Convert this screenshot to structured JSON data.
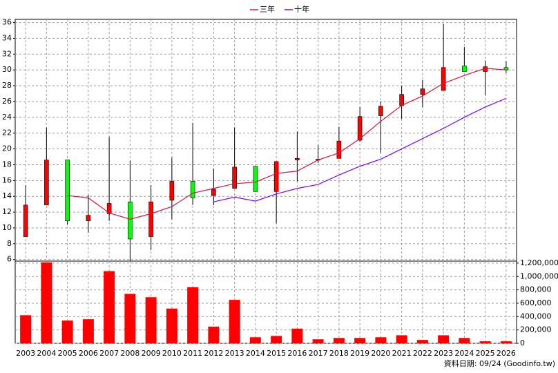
{
  "chart_data": [
    {
      "type": "candlestick",
      "categories": [
        "2003",
        "2004",
        "2005",
        "2006",
        "2007",
        "2008",
        "2009",
        "2010",
        "2011",
        "2012",
        "2013",
        "2014",
        "2015",
        "2016",
        "2017",
        "2018",
        "2019",
        "2020",
        "2021",
        "2022",
        "2023",
        "2024",
        "2025",
        "2026"
      ],
      "open": [
        8.9,
        12.9,
        18.6,
        10.9,
        11.8,
        13.3,
        8.9,
        13.5,
        15.9,
        14.1,
        15.0,
        17.8,
        14.6,
        18.6,
        18.6,
        18.8,
        21.1,
        24.2,
        25.5,
        26.9,
        27.4,
        30.5,
        29.8,
        30.3
      ],
      "high": [
        15.4,
        22.7,
        18.6,
        14.2,
        21.5,
        18.5,
        15.4,
        18.9,
        23.3,
        17.5,
        22.7,
        17.8,
        18.4,
        22.2,
        20.5,
        22.8,
        25.3,
        26.0,
        28.0,
        28.7,
        35.8,
        32.9,
        31.2,
        31.1
      ],
      "low": [
        8.9,
        12.9,
        10.4,
        9.4,
        10.9,
        5.8,
        7.2,
        11.1,
        12.9,
        12.9,
        15.0,
        14.6,
        10.6,
        15.9,
        18.2,
        18.8,
        20.9,
        19.5,
        23.8,
        25.3,
        27.4,
        29.8,
        26.8,
        29.6
      ],
      "close": [
        12.9,
        18.6,
        10.9,
        11.6,
        13.1,
        8.6,
        13.3,
        15.9,
        13.8,
        14.9,
        17.7,
        14.6,
        18.4,
        18.8,
        18.7,
        21.0,
        24.1,
        25.4,
        26.9,
        27.6,
        30.3,
        29.8,
        30.4,
        30.0
      ],
      "up_color": "#ff0000",
      "down_color": "#00ff00",
      "series": [
        {
          "name": "三年",
          "color": "#dc143c",
          "values": [
            null,
            null,
            14.1,
            13.8,
            11.9,
            11.1,
            11.8,
            12.7,
            14.4,
            15.0,
            15.6,
            15.8,
            16.9,
            17.2,
            18.6,
            19.5,
            21.3,
            23.5,
            25.5,
            26.7,
            28.3,
            29.3,
            30.2,
            30.0
          ]
        },
        {
          "name": "十年",
          "color": "#8000ff",
          "values": [
            null,
            null,
            null,
            null,
            null,
            null,
            null,
            null,
            null,
            13.3,
            13.9,
            13.4,
            14.3,
            15.0,
            15.5,
            16.7,
            17.8,
            18.7,
            20.0,
            21.3,
            22.6,
            24.0,
            25.3,
            26.4
          ]
        }
      ],
      "ylim": [
        5.8,
        36.4
      ],
      "yticks": [
        6,
        8,
        10,
        12,
        14,
        16,
        18,
        20,
        22,
        24,
        26,
        28,
        30,
        32,
        34,
        36
      ],
      "grid": true,
      "legend": "top"
    },
    {
      "type": "bar",
      "color": "#ff0000",
      "values": [
        420000,
        1210000,
        340000,
        360000,
        1080000,
        740000,
        690000,
        520000,
        840000,
        250000,
        650000,
        90000,
        110000,
        220000,
        60000,
        80000,
        80000,
        90000,
        120000,
        50000,
        120000,
        80000,
        30000,
        30000
      ],
      "ylim": [
        0,
        1230000
      ],
      "yticks": [
        0,
        {
          "value": 200000,
          "label": "200,000"
        },
        {
          "value": 400000,
          "label": "400,000"
        },
        {
          "value": 600000,
          "label": "600,000"
        },
        {
          "value": 800000,
          "label": "800,000"
        },
        {
          "value": 1000000,
          "label": "1,000,000"
        },
        {
          "value": 1200000,
          "label": "1,200,000"
        }
      ],
      "grid": true,
      "note": "資料日期: 09/24 (Goodinfo.tw)"
    }
  ]
}
